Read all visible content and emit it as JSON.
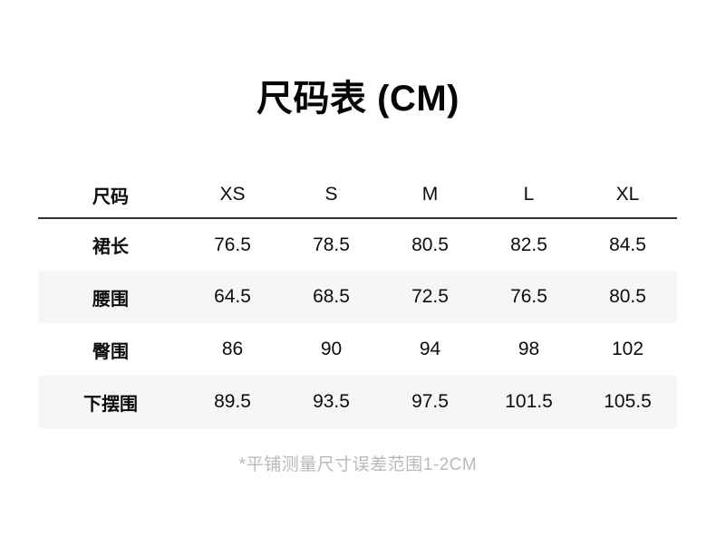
{
  "page": {
    "title": "尺码表 (CM)",
    "footnote": "*平铺测量尺寸误差范围1-2CM"
  },
  "chart_data": {
    "type": "table",
    "title": "尺码表 (CM)",
    "unit": "CM",
    "columns": [
      "尺码",
      "XS",
      "S",
      "M",
      "L",
      "XL"
    ],
    "rows": [
      {
        "label": "裙长",
        "values": [
          76.5,
          78.5,
          80.5,
          82.5,
          84.5
        ]
      },
      {
        "label": "腰围",
        "values": [
          64.5,
          68.5,
          72.5,
          76.5,
          80.5
        ]
      },
      {
        "label": "臀围",
        "values": [
          86,
          90,
          94,
          98,
          102
        ]
      },
      {
        "label": "下摆围",
        "values": [
          89.5,
          93.5,
          97.5,
          101.5,
          105.5
        ]
      }
    ],
    "footnote": "*平铺测量尺寸误差范围1-2CM",
    "layout": {
      "striped_row_indexes": [
        1,
        3
      ],
      "stripe_color": "#f6f6f6",
      "header_rule_color": "#333333",
      "text_color": "#0d0d0d",
      "footnote_color": "#b9b9b9",
      "title_color": "#050505",
      "grid": "header-rule-only",
      "alignment": "center"
    }
  }
}
